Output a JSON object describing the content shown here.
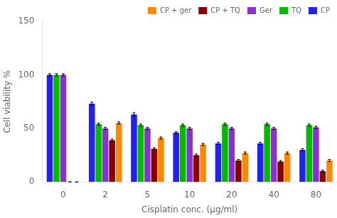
{
  "chart_data": {
    "type": "bar",
    "xlabel": "Cisplatin conc. (μg/ml)",
    "ylabel": "Cell viability %",
    "categories": [
      0,
      2,
      5,
      10,
      20,
      40,
      80
    ],
    "series": [
      {
        "name": "CP",
        "color": "#2222ee",
        "values": [
          100,
          73,
          63,
          46,
          36,
          36,
          30
        ],
        "errors": [
          1,
          1.5,
          1.5,
          1,
          1,
          1,
          1
        ]
      },
      {
        "name": "TQ",
        "color": "#00bb00",
        "values": [
          100,
          54,
          53,
          53,
          54,
          54,
          53
        ],
        "errors": [
          1,
          1,
          1,
          1,
          1,
          1,
          1
        ]
      },
      {
        "name": "Ger",
        "color": "#8833cc",
        "values": [
          100,
          50,
          50,
          50,
          50,
          50,
          51
        ],
        "errors": [
          1,
          1,
          1,
          1,
          1,
          1,
          1
        ]
      },
      {
        "name": "CP + TQ",
        "color": "#880000",
        "values": [
          0,
          39,
          31,
          25,
          20,
          19,
          10
        ],
        "errors": [
          0,
          1,
          1,
          1,
          1,
          1,
          1
        ]
      },
      {
        "name": "CP + ger",
        "color": "#ff8800",
        "values": [
          0,
          55,
          41,
          35,
          27,
          27,
          20
        ],
        "errors": [
          0,
          1,
          1,
          1,
          1,
          1,
          1
        ]
      }
    ],
    "ylim": [
      0,
      150
    ],
    "yticks": [
      0,
      50,
      100,
      150
    ],
    "grid": false,
    "legend": "upper right"
  }
}
